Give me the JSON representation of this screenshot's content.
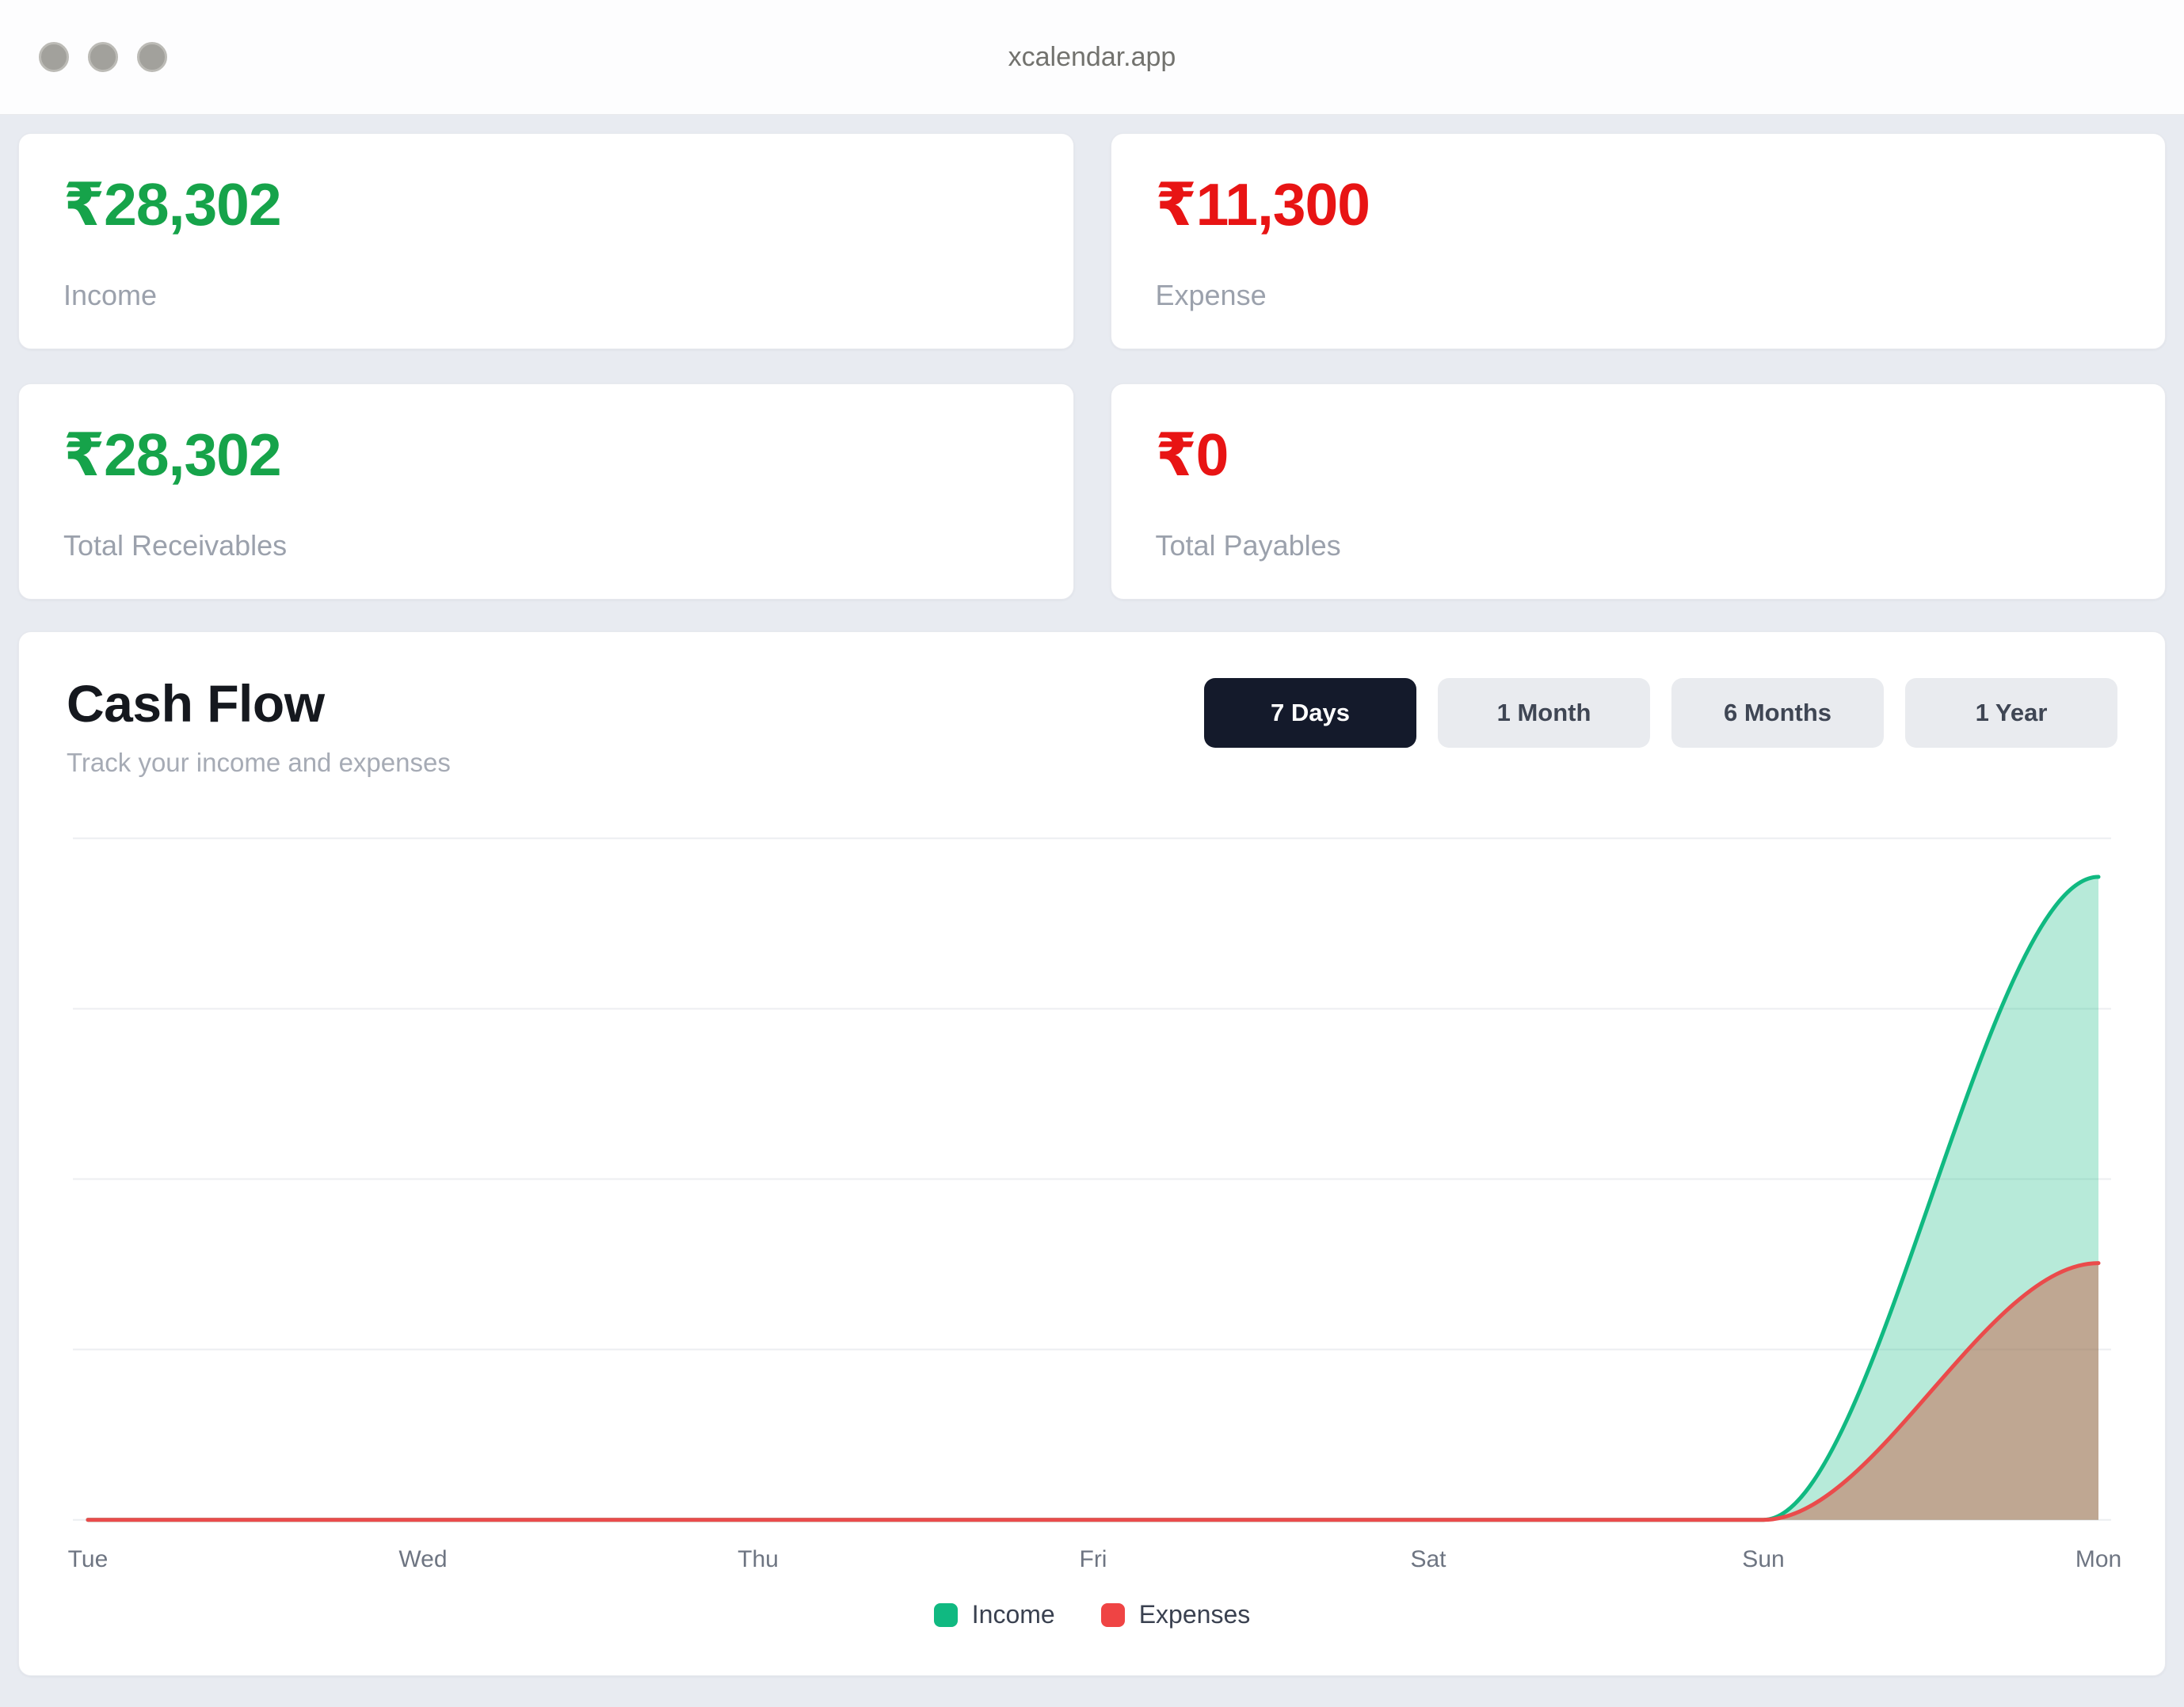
{
  "window": {
    "title": "xcalendar.app"
  },
  "stats": [
    {
      "id": "income",
      "amount": "₹28,302",
      "label": "Income",
      "color": "#16a34a"
    },
    {
      "id": "expense",
      "amount": "₹11,300",
      "label": "Expense",
      "color": "#e81414"
    },
    {
      "id": "receivables",
      "amount": "₹28,302",
      "label": "Total Receivables",
      "color": "#16a34a"
    },
    {
      "id": "payables",
      "amount": "₹0",
      "label": "Total Payables",
      "color": "#e81414"
    }
  ],
  "cashflow": {
    "title": "Cash Flow",
    "subtitle": "Track your income and expenses",
    "ranges": [
      {
        "label": "7 Days",
        "active": true
      },
      {
        "label": "1 Month",
        "active": false
      },
      {
        "label": "6 Months",
        "active": false
      },
      {
        "label": "1 Year",
        "active": false
      }
    ],
    "chart_data": {
      "type": "area",
      "title": "Cash Flow",
      "categories": [
        "Tue",
        "Wed",
        "Thu",
        "Fri",
        "Sat",
        "Sun",
        "Mon"
      ],
      "series": [
        {
          "name": "Income",
          "values": [
            0,
            0,
            0,
            0,
            0,
            0,
            28302
          ],
          "line_color": "#10b981",
          "fill_color": "rgba(16,185,129,0.30)",
          "legend_color": "#10b981"
        },
        {
          "name": "Expenses",
          "values": [
            0,
            0,
            0,
            0,
            0,
            0,
            11300
          ],
          "line_color": "#ea4b4b",
          "fill_color": "rgba(200,95,70,0.48)",
          "legend_color": "#ef4444"
        }
      ],
      "ylim": [
        0,
        30000
      ],
      "grid_values": [
        0,
        7500,
        15000,
        22500,
        30000
      ],
      "grid": true,
      "y_axis_labels": false,
      "smooth": true,
      "legend_position": "bottom-center"
    }
  }
}
